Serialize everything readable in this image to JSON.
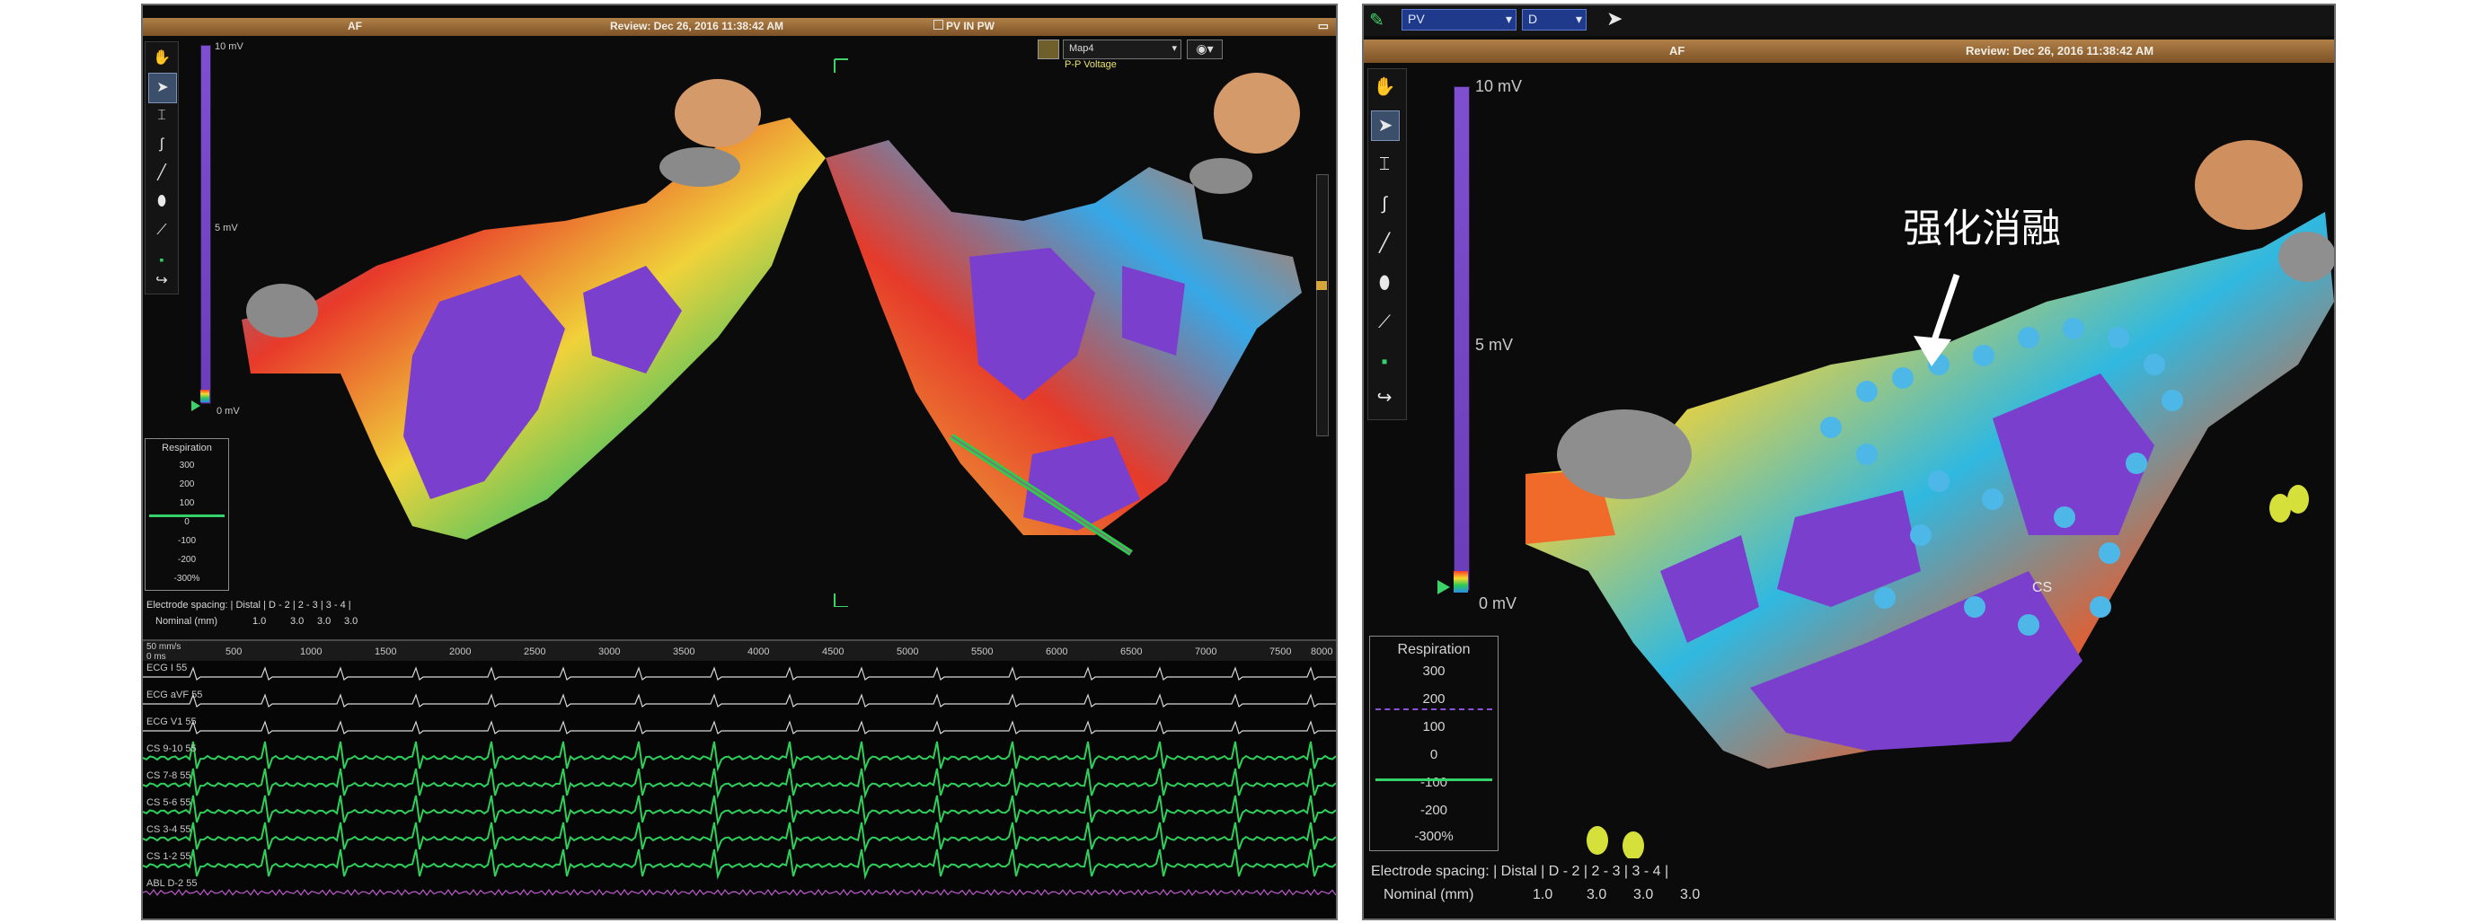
{
  "left_panel": {
    "title_left": "AF",
    "title_center": "Review: Dec 26, 2016 11:38:42 AM",
    "title_right": "PV IN PW",
    "map_select": "Map4",
    "map_type": "P-P Voltage",
    "scale": {
      "top": "10 mV",
      "mid": "5 mV",
      "bottom": "0 mV"
    },
    "respiration": {
      "title": "Respiration",
      "values": [
        "300",
        "200",
        "100",
        "0",
        "-100",
        "-200",
        "-300%"
      ]
    },
    "electrode": {
      "spacing_label": "Electrode spacing: | Distal | D - 2 | 2 - 3 | 3 - 4 |",
      "nominal_label": "Nominal (mm)",
      "nominal_values": [
        "1.0",
        "3.0",
        "3.0",
        "3.0"
      ]
    },
    "ecg": {
      "speed": "50 mm/s",
      "time_ticks": [
        "0 ms",
        "500",
        "1000",
        "1500",
        "2000",
        "2500",
        "3000",
        "3500",
        "4000",
        "4500",
        "5000",
        "5500",
        "6000",
        "6500",
        "7000",
        "7500",
        "8000"
      ],
      "channels": [
        {
          "label": "ECG I 55",
          "color": "#d8d8d8"
        },
        {
          "label": "ECG aVF 55",
          "color": "#d8d8d8"
        },
        {
          "label": "ECG V1 55",
          "color": "#d8d8d8"
        },
        {
          "label": "CS 9-10 55",
          "color": "#2fd05a"
        },
        {
          "label": "CS 7-8 55",
          "color": "#2fd05a"
        },
        {
          "label": "CS 5-6 55",
          "color": "#2fd05a"
        },
        {
          "label": "CS 3-4 55",
          "color": "#2fd05a"
        },
        {
          "label": "CS 1-2 55",
          "color": "#2fd05a"
        },
        {
          "label": "ABL D-2 55",
          "color": "#c05ad0"
        }
      ]
    }
  },
  "right_panel": {
    "toolbar_select_1": "PV",
    "toolbar_select_2": "D",
    "title_left": "AF",
    "title_right": "Review: Dec 26, 2016 11:38:42 AM",
    "scale": {
      "top": "10 mV",
      "mid": "5 mV",
      "bottom": "0 mV"
    },
    "respiration": {
      "title": "Respiration",
      "values": [
        "300",
        "200",
        "100",
        "0",
        "-100",
        "-200",
        "-300%"
      ]
    },
    "electrode": {
      "spacing_label": "Electrode spacing: | Distal | D - 2 | 2 - 3 | 3 - 4 |",
      "nominal_label": "Nominal (mm)",
      "nominal_values": [
        "1.0",
        "3.0",
        "3.0",
        "3.0"
      ]
    },
    "cs_label": "CS",
    "annotation": "强化消融"
  },
  "colors": {
    "background": "#0b0b0b",
    "title_bar": "#8a5a2c",
    "scale_bar": "#7344c4",
    "ecg_green": "#2fd05a",
    "ablation_dot": "#4db8e8"
  }
}
